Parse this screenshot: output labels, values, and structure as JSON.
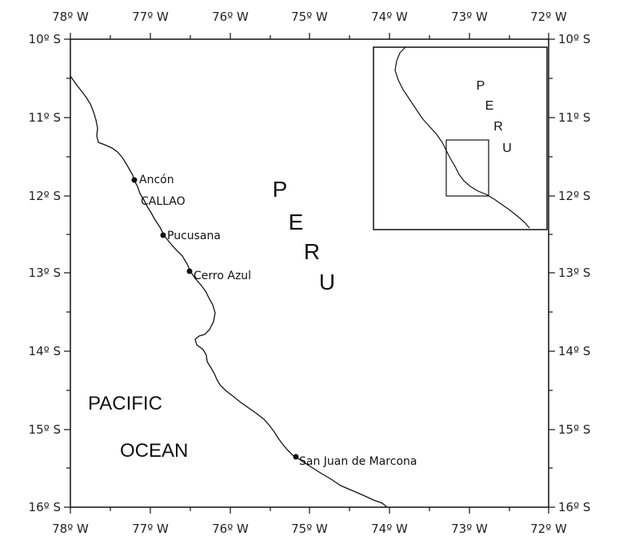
{
  "map": {
    "lon_labels": [
      "78º W",
      "77º W",
      "76º W",
      "75º W",
      "74º W",
      "73º W",
      "72º W"
    ],
    "lat_labels": [
      "10º S",
      "11º S",
      "12º S",
      "13º S",
      "14º S",
      "15º S",
      "16º S"
    ],
    "country_letters": [
      "P",
      "E",
      "R",
      "U"
    ],
    "ocean_line1": "PACIFIC",
    "ocean_line2": "OCEAN",
    "cities": [
      {
        "name": "Ancón"
      },
      {
        "name": "CALLAO"
      },
      {
        "name": "Pucusana"
      },
      {
        "name": "Cerro Azul"
      },
      {
        "name": "San Juan de Marcona"
      }
    ],
    "inset": {
      "letters": [
        "P",
        "E",
        "R",
        "U"
      ]
    }
  }
}
